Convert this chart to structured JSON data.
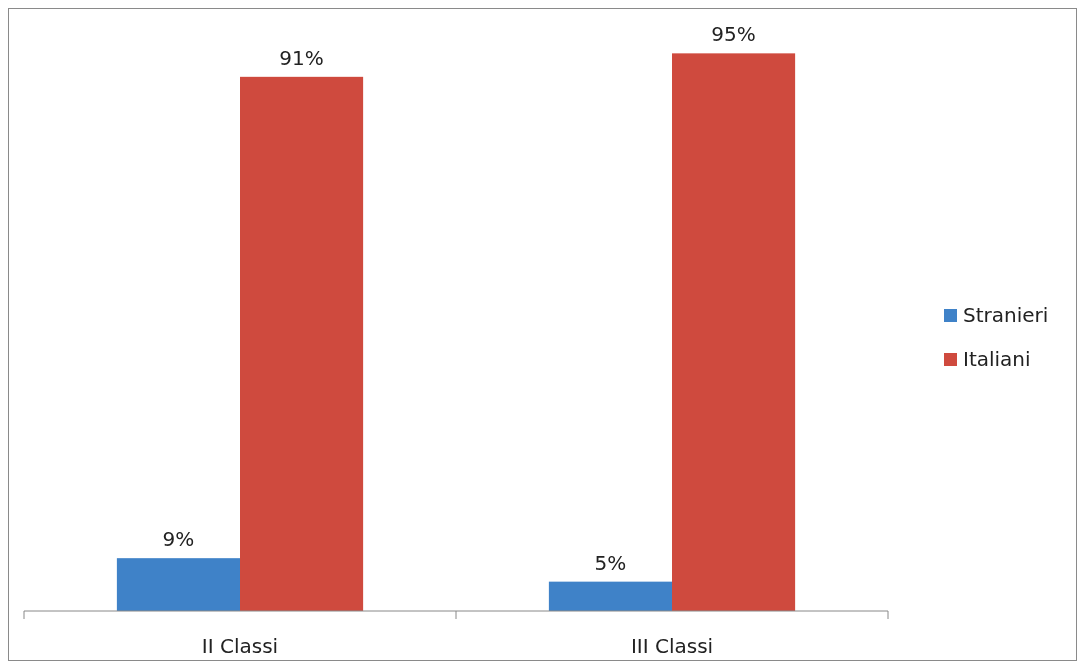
{
  "chart_data": {
    "type": "bar",
    "categories": [
      "II Classi",
      "III Classi"
    ],
    "series": [
      {
        "name": "Stranieri",
        "color": "#3f82c8",
        "values": [
          9,
          5
        ],
        "value_labels": [
          "9%",
          "5%"
        ]
      },
      {
        "name": "Italiani",
        "color": "#cf4a3e",
        "values": [
          91,
          95
        ],
        "value_labels": [
          "91%",
          "95%"
        ]
      }
    ],
    "legend": "right",
    "tick_labels": "x"
  }
}
